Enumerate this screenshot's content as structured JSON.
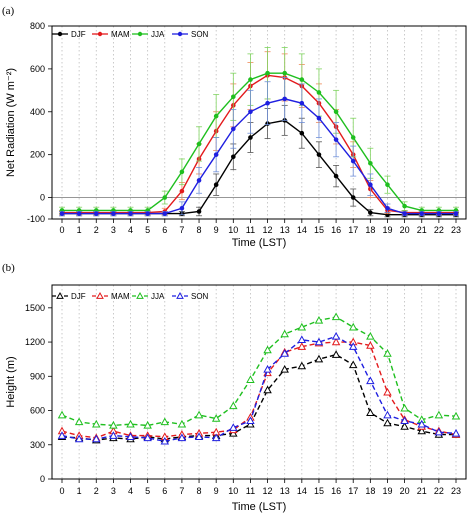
{
  "colors": {
    "DJF": "#000000",
    "MAM": "#e31a1c",
    "JJA": "#1fbf1f",
    "SON": "#1f1fe0",
    "errorbar_JJA": "#7fd35f",
    "errorbar_MAM": "#ef8a5a",
    "errorbar_SON": "#6f8fd8",
    "errorbar_DJF": "#555555",
    "grid": "#bdbdbd"
  },
  "chart_data": [
    {
      "panel": "(a)",
      "type": "line",
      "xlabel": "Time (LST)",
      "ylabel": "Net Radiation (W m⁻²)",
      "x": [
        0,
        1,
        2,
        3,
        4,
        5,
        6,
        7,
        8,
        9,
        10,
        11,
        12,
        13,
        14,
        15,
        16,
        17,
        18,
        19,
        20,
        21,
        22,
        23
      ],
      "xlim": [
        0,
        23
      ],
      "ylim": [
        -100,
        800
      ],
      "yticks": [
        0,
        200,
        400,
        600,
        800
      ],
      "yticks_extra": [
        -100
      ],
      "hline": 0,
      "grid": "vertical dotted",
      "legend": "top-left, horizontal",
      "marker": "filled circle",
      "series": [
        {
          "name": "DJF",
          "values": [
            -75,
            -75,
            -75,
            -75,
            -75,
            -75,
            -75,
            -75,
            -65,
            60,
            190,
            280,
            345,
            360,
            300,
            200,
            100,
            0,
            -70,
            -80,
            -80,
            -80,
            -80,
            -80
          ],
          "errors": [
            10,
            10,
            10,
            10,
            10,
            10,
            10,
            10,
            20,
            50,
            60,
            70,
            70,
            70,
            70,
            60,
            50,
            40,
            15,
            10,
            10,
            10,
            10,
            10
          ]
        },
        {
          "name": "MAM",
          "values": [
            -70,
            -70,
            -70,
            -70,
            -70,
            -70,
            -65,
            30,
            180,
            310,
            430,
            520,
            570,
            560,
            520,
            440,
            330,
            200,
            40,
            -60,
            -70,
            -70,
            -70,
            -70
          ],
          "errors": [
            10,
            10,
            10,
            10,
            10,
            10,
            15,
            40,
            70,
            90,
            100,
            110,
            110,
            110,
            100,
            90,
            80,
            60,
            40,
            15,
            10,
            10,
            10,
            10
          ]
        },
        {
          "name": "JJA",
          "values": [
            -60,
            -60,
            -60,
            -60,
            -60,
            -60,
            0,
            120,
            250,
            380,
            470,
            550,
            580,
            580,
            550,
            490,
            400,
            280,
            160,
            60,
            -40,
            -60,
            -60,
            -60
          ],
          "errors": [
            15,
            15,
            15,
            15,
            15,
            15,
            30,
            60,
            80,
            100,
            110,
            120,
            120,
            120,
            120,
            110,
            100,
            90,
            70,
            40,
            20,
            15,
            15,
            15
          ]
        },
        {
          "name": "SON",
          "values": [
            -75,
            -75,
            -75,
            -75,
            -75,
            -75,
            -75,
            -50,
            80,
            200,
            320,
            400,
            440,
            460,
            440,
            370,
            270,
            170,
            60,
            -50,
            -75,
            -75,
            -75,
            -75
          ],
          "errors": [
            10,
            10,
            10,
            10,
            10,
            10,
            10,
            30,
            60,
            80,
            90,
            100,
            100,
            100,
            90,
            90,
            80,
            70,
            50,
            20,
            10,
            10,
            10,
            10
          ]
        }
      ]
    },
    {
      "panel": "(b)",
      "type": "line",
      "xlabel": "Time (LST)",
      "ylabel": "Height (m)",
      "x": [
        0,
        1,
        2,
        3,
        4,
        5,
        6,
        7,
        8,
        9,
        10,
        11,
        12,
        13,
        14,
        15,
        16,
        17,
        18,
        19,
        20,
        21,
        22,
        23
      ],
      "xlim": [
        0,
        23
      ],
      "ylim": [
        0,
        1700
      ],
      "yticks": [
        0,
        300,
        600,
        900,
        1200,
        1500
      ],
      "grid": "vertical dotted",
      "legend": "top-left, horizontal",
      "marker": "open triangle",
      "linestyle": "dashed",
      "series": [
        {
          "name": "DJF",
          "values": [
            370,
            360,
            340,
            360,
            350,
            370,
            350,
            370,
            380,
            380,
            400,
            480,
            780,
            960,
            990,
            1050,
            1090,
            1000,
            580,
            490,
            460,
            420,
            390,
            390
          ]
        },
        {
          "name": "MAM",
          "values": [
            420,
            380,
            360,
            420,
            380,
            380,
            370,
            390,
            400,
            410,
            430,
            540,
            930,
            1110,
            1160,
            1190,
            1200,
            1200,
            1170,
            760,
            520,
            460,
            420,
            390
          ]
        },
        {
          "name": "JJA",
          "values": [
            560,
            500,
            480,
            470,
            480,
            470,
            500,
            480,
            560,
            530,
            640,
            870,
            1130,
            1270,
            1330,
            1390,
            1420,
            1330,
            1250,
            1100,
            620,
            520,
            560,
            550
          ]
        },
        {
          "name": "SON",
          "values": [
            380,
            350,
            350,
            380,
            370,
            360,
            330,
            360,
            370,
            360,
            450,
            510,
            960,
            1100,
            1220,
            1200,
            1250,
            1160,
            860,
            560,
            510,
            480,
            410,
            400
          ]
        }
      ]
    }
  ]
}
